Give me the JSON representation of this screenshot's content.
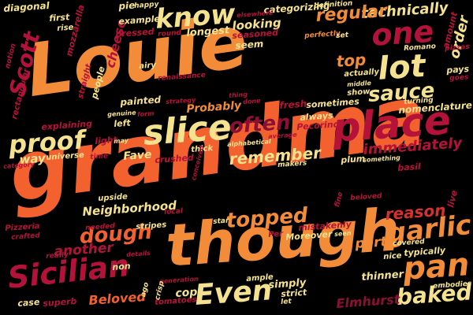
{
  "palette": {
    "background": "#000000",
    "orange": "#F28C38",
    "orange_red": "#F2612E",
    "red": "#D9302B",
    "crimson": "#B5123A",
    "dark_red": "#8C1034",
    "wine": "#7A0F2E",
    "yellow": "#F5E28E"
  },
  "words": [
    {
      "text": "grandma",
      "color": "#F2612E"
    },
    {
      "text": "Louie",
      "color": "#F28C38"
    },
    {
      "text": "though",
      "color": "#F28C38"
    },
    {
      "text": "place",
      "color": "#B5123A"
    },
    {
      "text": "slice",
      "color": "#F5E28E"
    },
    {
      "text": "know",
      "color": "#F5E28E"
    },
    {
      "text": "lot",
      "color": "#F5E28E"
    },
    {
      "text": "one",
      "color": "#B5123A"
    },
    {
      "text": "Sicilian",
      "color": "#B5123A"
    },
    {
      "text": "proof",
      "color": "#F5E28E"
    },
    {
      "text": "sauce",
      "color": "#F5E28E"
    },
    {
      "text": "often",
      "color": "#8C1034"
    },
    {
      "text": "pan",
      "color": "#F28C38"
    },
    {
      "text": "Even",
      "color": "#F5E28E"
    },
    {
      "text": "garlic",
      "color": "#F28C38"
    },
    {
      "text": "baked",
      "color": "#F5E28E"
    },
    {
      "text": "topped",
      "color": "#F28C38"
    },
    {
      "text": "dough",
      "color": "#F2612E"
    },
    {
      "text": "immediately",
      "color": "#B5123A"
    },
    {
      "text": "technically",
      "color": "#F5E28E"
    },
    {
      "text": "regular",
      "color": "#F28C38"
    },
    {
      "text": "Scott",
      "color": "#B5123A"
    },
    {
      "text": "remember",
      "color": "#F5E28E"
    },
    {
      "text": "Probably",
      "color": "#F28C38"
    },
    {
      "text": "Neighborhood",
      "color": "#F5E28E"
    },
    {
      "text": "another",
      "color": "#B5123A"
    },
    {
      "text": "reason",
      "color": "#D9302B"
    },
    {
      "text": "top",
      "color": "#F28C38"
    },
    {
      "text": "Beloved",
      "color": "#F2612E"
    },
    {
      "text": "Elmhurst",
      "color": "#8C1034"
    },
    {
      "text": "order",
      "color": "#F5E28E"
    },
    {
      "text": "cheese",
      "color": "#B5123A"
    },
    {
      "text": "looking",
      "color": "#F5E28E"
    },
    {
      "text": "part",
      "color": "#F28C38"
    },
    {
      "text": "way",
      "color": "#F5E28E"
    },
    {
      "text": "Fave",
      "color": "#F5E28E"
    },
    {
      "text": "thinner",
      "color": "#F5E28E"
    },
    {
      "text": "simply",
      "color": "#F5E28E"
    },
    {
      "text": "cop",
      "color": "#F5E28E"
    },
    {
      "text": "seem",
      "color": "#F5E28E"
    },
    {
      "text": "first",
      "color": "#F5E28E"
    },
    {
      "text": "rise",
      "color": "#F5E28E"
    },
    {
      "text": "pie",
      "color": "#F5E28E"
    },
    {
      "text": "happy",
      "color": "#F5E28E"
    },
    {
      "text": "example",
      "color": "#F5E28E"
    },
    {
      "text": "pressed",
      "color": "#B5123A"
    },
    {
      "text": "round",
      "color": "#B5123A"
    },
    {
      "text": "longest",
      "color": "#F5E28E"
    },
    {
      "text": "seasoned",
      "color": "#B5123A"
    },
    {
      "text": "categorizing",
      "color": "#F5E28E"
    },
    {
      "text": "elsewhere",
      "color": "#B5123A"
    },
    {
      "text": "definition",
      "color": "#F5E28E"
    },
    {
      "text": "perfectly",
      "color": "#F28C38"
    },
    {
      "text": "set",
      "color": "#F5E28E"
    },
    {
      "text": "amount",
      "color": "#B5123A"
    },
    {
      "text": "pizzas",
      "color": "#B5123A"
    },
    {
      "text": "Romano",
      "color": "#F5E28E"
    },
    {
      "text": "diagonal",
      "color": "#F5E28E"
    },
    {
      "text": "notion",
      "color": "#B5123A"
    },
    {
      "text": "mozzarella",
      "color": "#B5123A"
    },
    {
      "text": "rectangular",
      "color": "#B5123A"
    },
    {
      "text": "straight",
      "color": "#B5123A"
    },
    {
      "text": "people",
      "color": "#F5E28E"
    },
    {
      "text": "airy",
      "color": "#F5E28E"
    },
    {
      "text": "renaissance",
      "color": "#B5123A"
    },
    {
      "text": "painted",
      "color": "#F5E28E"
    },
    {
      "text": "genuine",
      "color": "#F5E28E"
    },
    {
      "text": "form",
      "color": "#B5123A"
    },
    {
      "text": "left",
      "color": "#F5E28E"
    },
    {
      "text": "strategy",
      "color": "#B5123A"
    },
    {
      "text": "thing",
      "color": "#B5123A"
    },
    {
      "text": "done",
      "color": "#B5123A"
    },
    {
      "text": "fresh",
      "color": "#B5123A"
    },
    {
      "text": "sometimes",
      "color": "#F5E28E"
    },
    {
      "text": "always",
      "color": "#F5E28E"
    },
    {
      "text": "Pecorino",
      "color": "#B5123A"
    },
    {
      "text": "average",
      "color": "#B5123A"
    },
    {
      "text": "actually",
      "color": "#F5E28E"
    },
    {
      "text": "middle",
      "color": "#F5E28E"
    },
    {
      "text": "show",
      "color": "#F5E28E"
    },
    {
      "text": "pays",
      "color": "#F5E28E"
    },
    {
      "text": "goes",
      "color": "#B5123A"
    },
    {
      "text": "turning",
      "color": "#F5E28E"
    },
    {
      "text": "nomenclature",
      "color": "#F5E28E"
    },
    {
      "text": "explaining",
      "color": "#B5123A"
    },
    {
      "text": "light",
      "color": "#B5123A"
    },
    {
      "text": "may",
      "color": "#F5E28E"
    },
    {
      "text": "universe",
      "color": "#F5E28E"
    },
    {
      "text": "category",
      "color": "#B5123A"
    },
    {
      "text": "time",
      "color": "#B5123A"
    },
    {
      "text": "crushed",
      "color": "#B5123A"
    },
    {
      "text": "thick",
      "color": "#F5E28E"
    },
    {
      "text": "alphabetical",
      "color": "#F5E28E"
    },
    {
      "text": "makers",
      "color": "#F5E28E"
    },
    {
      "text": "plum",
      "color": "#F5E28E"
    },
    {
      "text": "something",
      "color": "#F5E28E"
    },
    {
      "text": "basil",
      "color": "#B5123A"
    },
    {
      "text": "upside",
      "color": "#F5E28E"
    },
    {
      "text": "stripes",
      "color": "#F5E28E"
    },
    {
      "text": "needed",
      "color": "#B5123A"
    },
    {
      "text": "local",
      "color": "#B5123A"
    },
    {
      "text": "star",
      "color": "#F5E28E"
    },
    {
      "text": "Pizzeria",
      "color": "#B5123A"
    },
    {
      "text": "crafted",
      "color": "#B5123A"
    },
    {
      "text": "really",
      "color": "#B5123A"
    },
    {
      "text": "details",
      "color": "#B5123A"
    },
    {
      "text": "non",
      "color": "#F5E28E"
    },
    {
      "text": "mistakenly",
      "color": "#B5123A"
    },
    {
      "text": "Moreover",
      "color": "#F5E28E"
    },
    {
      "text": "seen",
      "color": "#F5E28E"
    },
    {
      "text": "Per",
      "color": "#B5123A"
    },
    {
      "text": "beloved",
      "color": "#B5123A"
    },
    {
      "text": "fine",
      "color": "#B5123A"
    },
    {
      "text": "covered",
      "color": "#F5E28E"
    },
    {
      "text": "live",
      "color": "#B5123A"
    },
    {
      "text": "nice",
      "color": "#F5E28E"
    },
    {
      "text": "typically",
      "color": "#F5E28E"
    },
    {
      "text": "generation",
      "color": "#B5123A"
    },
    {
      "text": "ago",
      "color": "#F5E28E"
    },
    {
      "text": "crisp",
      "color": "#F5E28E"
    },
    {
      "text": "ample",
      "color": "#F5E28E"
    },
    {
      "text": "strict",
      "color": "#F5E28E"
    },
    {
      "text": "let",
      "color": "#F5E28E"
    },
    {
      "text": "embodies",
      "color": "#F5E28E"
    },
    {
      "text": "case",
      "color": "#F5E28E"
    },
    {
      "text": "superb",
      "color": "#B5123A"
    },
    {
      "text": "tomatoes",
      "color": "#B5123A"
    },
    {
      "text": "conceived",
      "color": "#B5123A"
    }
  ]
}
